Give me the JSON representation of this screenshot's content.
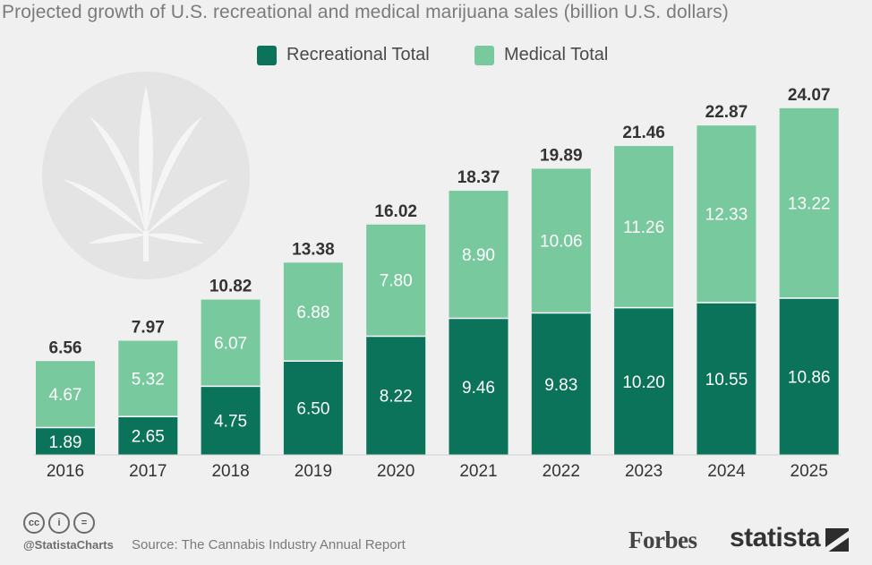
{
  "title": "Projected growth of U.S. recreational and medical marijuana sales (billion U.S. dollars)",
  "colors": {
    "recreational": "#0b735a",
    "medical": "#79c99e",
    "background": "#f0f0f0",
    "watermark": "#e4e4e4"
  },
  "legend": [
    {
      "label": "Recreational Total",
      "color": "#0b735a"
    },
    {
      "label": "Medical Total",
      "color": "#79c99e"
    }
  ],
  "chart_data": {
    "type": "bar",
    "stacked": true,
    "title": "Projected growth of U.S. recreational and medical marijuana sales (billion U.S. dollars)",
    "categories": [
      "2016",
      "2017",
      "2018",
      "2019",
      "2020",
      "2021",
      "2022",
      "2023",
      "2024",
      "2025"
    ],
    "series": [
      {
        "name": "Recreational Total",
        "values": [
          1.89,
          2.65,
          4.75,
          6.5,
          8.22,
          9.46,
          9.83,
          10.2,
          10.55,
          10.86
        ]
      },
      {
        "name": "Medical Total",
        "values": [
          4.67,
          5.32,
          6.07,
          6.88,
          7.8,
          8.9,
          10.06,
          11.26,
          12.33,
          13.22
        ]
      }
    ],
    "totals": [
      6.56,
      7.97,
      10.82,
      13.38,
      16.02,
      18.37,
      19.89,
      21.46,
      22.87,
      24.07
    ],
    "value_labels": {
      "recreational": [
        "1.89",
        "2.65",
        "4.75",
        "6.50",
        "8.22",
        "9.46",
        "9.83",
        "10.20",
        "10.55",
        "10.86"
      ],
      "medical": [
        "4.67",
        "5.32",
        "6.07",
        "6.88",
        "7.80",
        "8.90",
        "10.06",
        "11.26",
        "12.33",
        "13.22"
      ],
      "totals": [
        "6.56",
        "7.97",
        "10.82",
        "13.38",
        "16.02",
        "18.37",
        "19.89",
        "21.46",
        "22.87",
        "24.07"
      ]
    },
    "xlabel": "",
    "ylabel": "",
    "ylim": [
      0,
      24.07
    ],
    "grid": false,
    "legend_position": "top-center"
  },
  "footer": {
    "handle": "@StatistaCharts",
    "source": "Source: The Cannabis Industry Annual Report",
    "license_icons": [
      "cc-icon",
      "attribution-icon",
      "no-derivatives-icon"
    ],
    "forbes_logo": "Forbes",
    "statista_logo": "statista"
  }
}
